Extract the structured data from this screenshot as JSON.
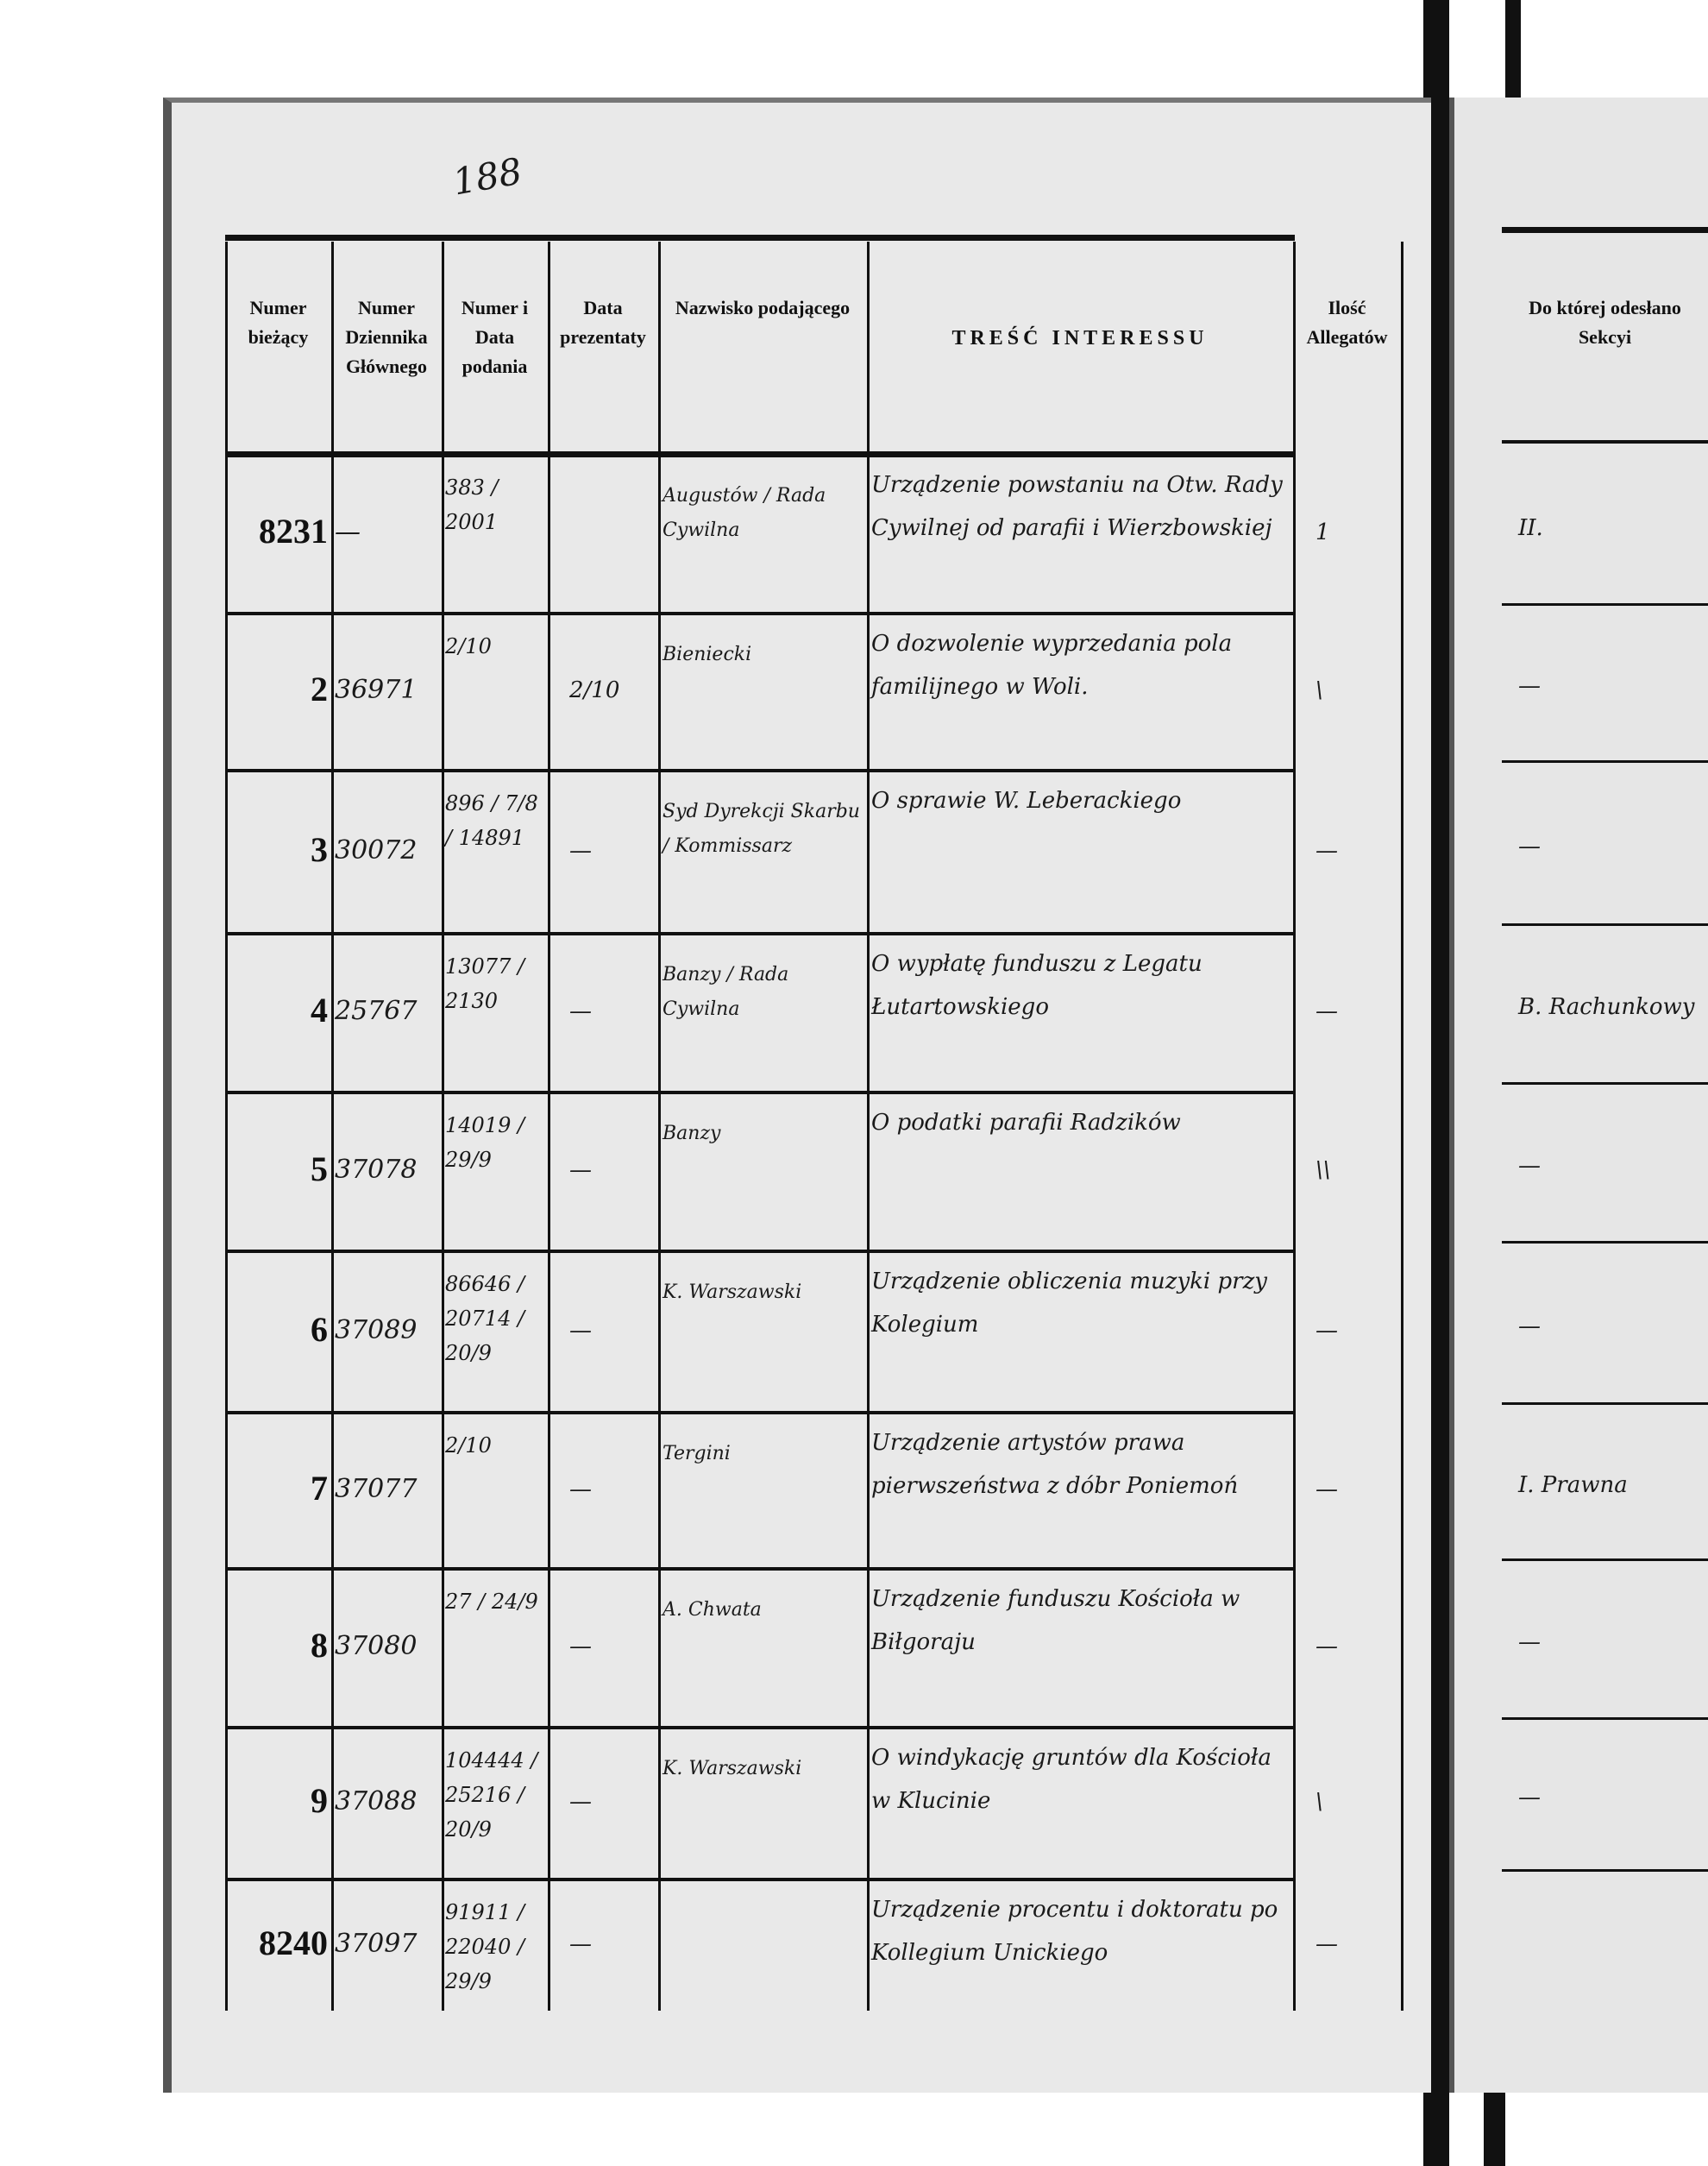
{
  "page_number": "188",
  "headers": [
    "Numer bieżący",
    "Numer Dziennika Głównego",
    "Numer i Data podania",
    "Data prezentaty",
    "Nazwisko podającego",
    "TREŚĆ INTERESSU",
    "Ilość Allegatów"
  ],
  "right_header": "Do której odesłano Sekcyi",
  "rows": [
    {
      "no": "8231",
      "journal": "—",
      "filing": "383 / 2001",
      "presented": "",
      "name": "Augustów / Rada Cywilna",
      "content": "Urządzenie powstaniu na Otw. Rady Cywilnej od parafii i Wierzbowskiej",
      "attach": "1",
      "section": "II."
    },
    {
      "no": "2",
      "journal": "36971",
      "filing": "2/10",
      "presented": "2/10",
      "name": "Bieniecki",
      "content": "O dozwolenie wyprzedania pola familijnego w Woli.",
      "attach": "\\",
      "section": "—"
    },
    {
      "no": "3",
      "journal": "30072",
      "filing": "896 / 7/8 / 14891",
      "presented": "—",
      "name": "Syd Dyrekcji Skarbu / Kommissarz",
      "content": "O sprawie W. Leberackiego",
      "attach": "—",
      "section": "—"
    },
    {
      "no": "4",
      "journal": "25767",
      "filing": "13077 / 2130",
      "presented": "—",
      "name": "Banzy / Rada Cywilna",
      "content": "O wypłatę funduszu z Legatu Łutartowskiego",
      "attach": "—",
      "section": "B. Rachunkowy"
    },
    {
      "no": "5",
      "journal": "37078",
      "filing": "14019 / 29/9",
      "presented": "—",
      "name": "Banzy",
      "content": "O podatki parafii Radzików",
      "attach": "\\\\",
      "section": "—"
    },
    {
      "no": "6",
      "journal": "37089",
      "filing": "86646 / 20714 / 20/9",
      "presented": "—",
      "name": "K. Warszawski",
      "content": "Urządzenie obliczenia muzyki przy Kolegium",
      "attach": "—",
      "section": "—"
    },
    {
      "no": "7",
      "journal": "37077",
      "filing": "2/10",
      "presented": "—",
      "name": "Tergini",
      "content": "Urządzenie artystów prawa pierwszeństwa z dóbr Poniemoń",
      "attach": "—",
      "section": "I. Prawna"
    },
    {
      "no": "8",
      "journal": "37080",
      "filing": "27 / 24/9",
      "presented": "—",
      "name": "A. Chwata",
      "content": "Urządzenie funduszu Kościoła w Biłgoraju",
      "attach": "—",
      "section": "—"
    },
    {
      "no": "9",
      "journal": "37088",
      "filing": "104444 / 25216 / 20/9",
      "presented": "—",
      "name": "K. Warszawski",
      "content": "O windykację gruntów dla Kościoła w Klucinie",
      "attach": "\\",
      "section": "—"
    },
    {
      "no": "8240",
      "journal": "37097",
      "filing": "91911 / 22040 / 29/9",
      "presented": "—",
      "name": "",
      "content": "Urządzenie procentu i doktoratu po Kollegium Unickiego",
      "attach": "—",
      "section": ""
    }
  ]
}
